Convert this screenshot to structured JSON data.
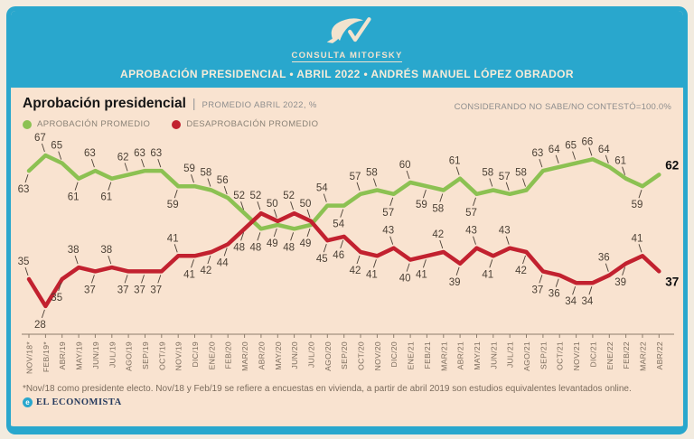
{
  "header": {
    "logo_text": "CONSULTA MITOFSKY",
    "title": "APROBACIÓN PRESIDENCIAL • ABRIL 2022 • ANDRÉS MANUEL LÓPEZ OBRADOR"
  },
  "panel": {
    "title": "Aprobación presidencial",
    "separator": "|",
    "subtitle": "PROMEDIO ABRIL 2022, %",
    "note": "CONSIDERANDO NO SABE/NO CONTESTÓ=100.0%",
    "legend": [
      {
        "label": "APROBACIÓN PROMEDIO",
        "color": "#8cc152"
      },
      {
        "label": "DESAPROBACIÓN PROMEDIO",
        "color": "#c2212f"
      }
    ]
  },
  "chart_data": {
    "type": "line",
    "title": "Aprobación presidencial — PROMEDIO ABRIL 2022, %",
    "categories": [
      "NOV/18*",
      "FEB/19*",
      "ABR/19",
      "MAY/19",
      "JUN/19",
      "JUL/19",
      "AGO/19",
      "SEP/19",
      "OCT/19",
      "NOV/19",
      "DIC/19",
      "ENE/20",
      "FEB/20",
      "MAR/20",
      "ABR/20",
      "MAY/20",
      "JUN/20",
      "JUL/20",
      "AGO/20",
      "SEP/20",
      "OCT/20",
      "NOV/20",
      "DIC/20",
      "ENE/21",
      "FEB/21",
      "MAR/21",
      "ABR/21",
      "MAY/21",
      "JUN/21",
      "JUL/21",
      "AGO/21",
      "SEP/21",
      "OCT/21",
      "NOV/21",
      "DIC/21",
      "ENE/22",
      "FEB/22",
      "MAR/22",
      "ABR/22"
    ],
    "series": [
      {
        "name": "APROBACIÓN PROMEDIO",
        "color": "#8cc152",
        "values": [
          63,
          67,
          65,
          61,
          63,
          61,
          62,
          63,
          63,
          59,
          59,
          58,
          56,
          52,
          48,
          49,
          48,
          49,
          54,
          54,
          57,
          58,
          57,
          60,
          59,
          58,
          61,
          57,
          58,
          57,
          58,
          63,
          64,
          65,
          66,
          64,
          61,
          59,
          62
        ],
        "label_side": [
          "b",
          "a",
          "a",
          "b",
          "a",
          "b",
          "a",
          "a",
          "a",
          "b",
          "a",
          "a",
          "a",
          "a",
          "b",
          "b",
          "b",
          "b",
          "a",
          "b",
          "a",
          "a",
          "b",
          "a",
          "b",
          "b",
          "a",
          "b",
          "a",
          "a",
          "a",
          "a",
          "a",
          "a",
          "a",
          "a",
          "a",
          "b",
          "r"
        ]
      },
      {
        "name": "DESAPROBACIÓN PROMEDIO",
        "color": "#c2212f",
        "values": [
          35,
          28,
          35,
          38,
          37,
          38,
          37,
          37,
          37,
          41,
          41,
          42,
          44,
          48,
          52,
          50,
          52,
          50,
          45,
          46,
          42,
          41,
          43,
          40,
          41,
          42,
          39,
          43,
          41,
          43,
          42,
          37,
          36,
          34,
          34,
          36,
          39,
          41,
          37
        ],
        "label_side": [
          "a",
          "b",
          "b",
          "a",
          "b",
          "a",
          "b",
          "b",
          "b",
          "a",
          "b",
          "b",
          "b",
          "b",
          "a",
          "a",
          "a",
          "a",
          "b",
          "b",
          "b",
          "b",
          "a",
          "b",
          "b",
          "a",
          "b",
          "a",
          "b",
          "a",
          "b",
          "b",
          "b",
          "b",
          "b",
          "a",
          "b",
          "a",
          "r"
        ]
      }
    ],
    "ylim": [
      25,
      70
    ],
    "grid": false,
    "legend_position": "top-left",
    "last_value_bold": true
  },
  "footer": {
    "footnote": "*Nov/18 como presidente electo. Nov/18 y Feb/19 se refiere a encuestas en vivienda, a partir de abril 2019 son estudios equivalentes levantados online.",
    "attribution_icon": "e",
    "attribution": "EL ECONOMISTA"
  },
  "colors": {
    "teal": "#29a7cd",
    "background": "#f9e3d0",
    "approve": "#8cc152",
    "disapprove": "#c2212f"
  }
}
